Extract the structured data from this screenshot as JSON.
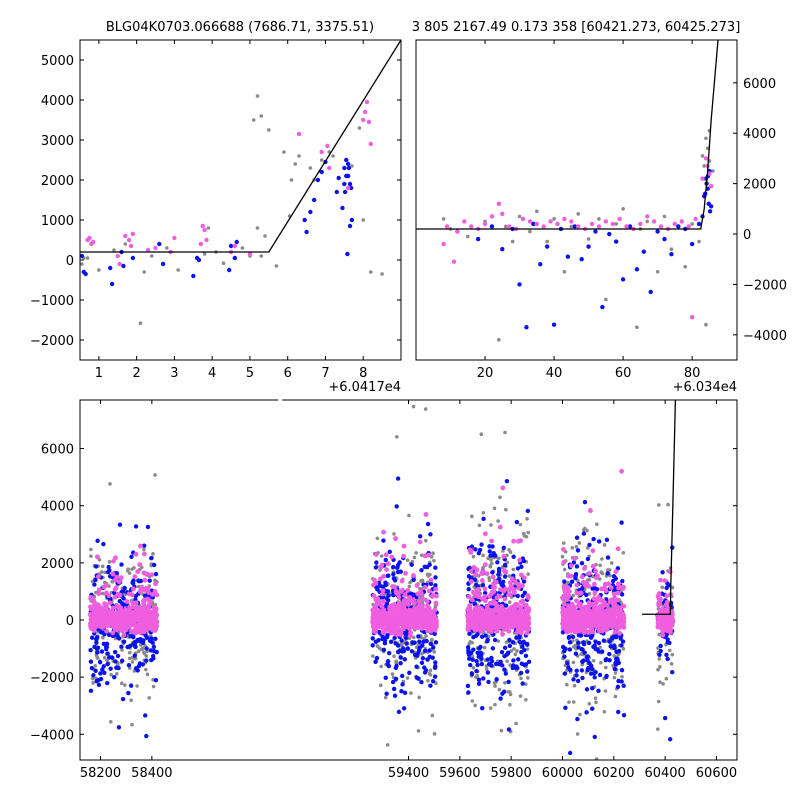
{
  "figure": {
    "title_left": "BLG04K0703.066688 (7686.71, 3375.51)",
    "title_right": "3 805 2167.49 0.173 358 [60421.273, 60425.273]"
  },
  "colors": {
    "blue": "#0a12f2",
    "gray": "#8a8a8a",
    "pink": "#f05ee0",
    "model": "#000000"
  },
  "chart_data": [
    {
      "type": "scatter",
      "panel": "top-left",
      "title": "BLG04K0703.066688 (7686.71, 3375.51)",
      "offset_label": "+6.0417e4",
      "xlim": [
        0.5,
        9.0
      ],
      "ylim": [
        -2500,
        5500
      ],
      "xticks": [
        1,
        2,
        3,
        4,
        5,
        6,
        7,
        8
      ],
      "yticks": [
        -2000,
        -1000,
        0,
        1000,
        2000,
        3000,
        4000,
        5000
      ],
      "yaxis_side": "left",
      "model_line": {
        "x": [
          0.5,
          5.5,
          9.0
        ],
        "y": [
          200,
          200,
          5500
        ]
      },
      "series": [
        {
          "color": "blue",
          "x": [
            0.55,
            0.6,
            0.65,
            1.3,
            1.35,
            1.6,
            1.65,
            1.9,
            2.6,
            2.7,
            3.5,
            3.6,
            3.65,
            4.45,
            4.5,
            4.6,
            4.65,
            6.5,
            6.6,
            6.8,
            6.9,
            7.0,
            7.3,
            7.35,
            7.5,
            7.55,
            7.6,
            7.65,
            7.7,
            7.55,
            7.62,
            7.68,
            7.52,
            7.58,
            7.65,
            7.5,
            7.45,
            7.6,
            6.45,
            6.7
          ],
          "y": [
            100,
            -300,
            -350,
            -200,
            -600,
            200,
            -150,
            50,
            400,
            -100,
            -400,
            50,
            0,
            -250,
            350,
            50,
            450,
            700,
            1200,
            2000,
            2200,
            2450,
            1700,
            2050,
            2300,
            2100,
            2400,
            1900,
            1000,
            2500,
            2300,
            1800,
            1700,
            150,
            850,
            1900,
            1300,
            2100,
            1000,
            1500
          ]
        },
        {
          "color": "gray",
          "x": [
            0.55,
            0.6,
            0.7,
            1.0,
            1.4,
            1.7,
            2.1,
            2.2,
            2.4,
            2.8,
            3.1,
            3.7,
            3.8,
            3.9,
            4.1,
            4.3,
            4.8,
            5.0,
            5.1,
            5.2,
            5.3,
            5.5,
            5.7,
            5.9,
            6.05,
            6.1,
            6.2,
            6.3,
            6.6,
            6.7,
            6.9,
            7.1,
            7.2,
            7.3,
            7.7,
            7.9,
            8.0,
            8.2,
            8.5,
            5.2,
            5.3,
            5.4
          ],
          "y": [
            -100,
            50,
            50,
            -250,
            250,
            400,
            -1580,
            -300,
            100,
            300,
            -250,
            400,
            150,
            800,
            200,
            -80,
            300,
            100,
            3500,
            4100,
            3600,
            3250,
            -150,
            2700,
            1100,
            2000,
            2400,
            2600,
            2300,
            2000,
            2500,
            2700,
            2600,
            1700,
            2350,
            3300,
            1000,
            -300,
            -350,
            800,
            100,
            600
          ]
        },
        {
          "color": "pink",
          "x": [
            0.7,
            0.75,
            0.8,
            0.85,
            1.5,
            1.55,
            1.7,
            1.8,
            1.85,
            1.9,
            2.3,
            2.5,
            2.9,
            3.0,
            3.7,
            3.75,
            3.8,
            3.85,
            4.5,
            4.6,
            5.0,
            6.3,
            6.9,
            7.05,
            7.1,
            8.0,
            8.05,
            8.1,
            8.15,
            8.2,
            7.6
          ],
          "y": [
            500,
            550,
            400,
            450,
            100,
            -100,
            600,
            500,
            350,
            650,
            250,
            300,
            200,
            550,
            400,
            850,
            750,
            500,
            200,
            350,
            150,
            3150,
            2700,
            2850,
            2300,
            3500,
            3700,
            3950,
            3450,
            2900,
            1800
          ]
        }
      ]
    },
    {
      "type": "scatter",
      "panel": "top-right",
      "title": "3 805 2167.49 0.173 358 [60421.273, 60425.273]",
      "offset_label": "+6.034e4",
      "xlim": [
        0,
        93
      ],
      "ylim": [
        -5000,
        7700
      ],
      "xticks": [
        20,
        40,
        60,
        80
      ],
      "yticks": [
        -4000,
        -2000,
        0,
        2000,
        4000,
        6000
      ],
      "yaxis_side": "right",
      "model_line": {
        "x": [
          0,
          82.5,
          83.5,
          84.5,
          85.5,
          87.5
        ],
        "y": [
          200,
          200,
          1000,
          2500,
          4500,
          7700
        ]
      },
      "series": [
        {
          "color": "blue",
          "x": [
            12,
            18,
            22,
            25,
            28,
            30,
            32,
            34,
            36,
            38,
            40,
            42,
            44,
            46,
            48,
            50,
            52,
            54,
            56,
            58,
            60,
            62,
            64,
            66,
            68,
            70,
            72,
            74,
            76,
            78,
            80,
            82,
            83,
            83.5,
            84,
            84.5,
            85,
            85.2,
            84.8,
            84.2,
            83.8,
            84.6,
            85.5
          ],
          "y": [
            100,
            -200,
            300,
            -600,
            200,
            -2000,
            -3700,
            400,
            -1200,
            -500,
            -3600,
            200,
            -900,
            300,
            -1000,
            -500,
            100,
            -2900,
            0,
            -300,
            -1800,
            300,
            -1400,
            -700,
            -2300,
            100,
            -200,
            -800,
            300,
            200,
            -400,
            400,
            700,
            1500,
            2200,
            1800,
            2500,
            900,
            1200,
            2000,
            1600,
            2300,
            1100
          ]
        },
        {
          "color": "gray",
          "x": [
            8,
            10,
            15,
            20,
            24,
            26,
            28,
            30,
            33,
            35,
            38,
            40,
            43,
            45,
            47,
            50,
            53,
            55,
            58,
            60,
            62,
            64,
            65,
            67,
            70,
            72,
            74,
            76,
            78,
            80,
            82,
            84,
            83,
            84,
            85,
            86,
            84.5,
            85,
            83.5
          ],
          "y": [
            600,
            200,
            -100,
            500,
            -4200,
            300,
            -300,
            700,
            100,
            900,
            -300,
            600,
            -1500,
            300,
            800,
            -200,
            600,
            -2600,
            400,
            1000,
            300,
            -3700,
            200,
            500,
            -1500,
            700,
            -600,
            300,
            -1300,
            400,
            -300,
            -3600,
            3100,
            3800,
            4100,
            2500,
            3400,
            2900,
            2700
          ]
        },
        {
          "color": "pink",
          "x": [
            8,
            9,
            11,
            12,
            14,
            16,
            18,
            20,
            22,
            24,
            25,
            27,
            29,
            31,
            33,
            35,
            37,
            39,
            41,
            43,
            45,
            47,
            49,
            51,
            53,
            55,
            57,
            59,
            61,
            63,
            65,
            67,
            69,
            71,
            73,
            75,
            77,
            79,
            81,
            83,
            84,
            84.5,
            85,
            85.5,
            80
          ],
          "y": [
            -400,
            300,
            -1100,
            100,
            500,
            300,
            200,
            400,
            700,
            1200,
            800,
            300,
            200,
            600,
            500,
            400,
            300,
            500,
            400,
            600,
            500,
            300,
            200,
            400,
            300,
            500,
            400,
            600,
            300,
            200,
            400,
            700,
            500,
            300,
            200,
            400,
            500,
            300,
            600,
            2200,
            3000,
            2700,
            2400,
            1900,
            -3300
          ]
        }
      ]
    },
    {
      "type": "scatter",
      "panel": "bottom",
      "xlim": [
        58120,
        60680
      ],
      "ylim": [
        -4900,
        7700
      ],
      "xticks": [
        58200,
        58400,
        59400,
        59600,
        59800,
        60000,
        60200,
        60400,
        60600
      ],
      "xtick_labels": [
        "58200",
        "58400",
        "59400",
        "59600",
        "59800",
        "60000",
        "60200",
        "60400",
        "60600"
      ],
      "yticks": [
        -4000,
        -2000,
        0,
        2000,
        4000,
        6000
      ],
      "yaxis_side": "left",
      "axis_break_after": 58400,
      "axis_break_before": 59400,
      "seasons": [
        {
          "x0": 58160,
          "x1": 58420,
          "spread": 1800
        },
        {
          "x0": 59260,
          "x1": 59510,
          "spread": 2200
        },
        {
          "x0": 59630,
          "x1": 59870,
          "spread": 2600
        },
        {
          "x0": 60000,
          "x1": 60240,
          "spread": 2400
        },
        {
          "x0": 60370,
          "x1": 60430,
          "spread": 1500
        }
      ],
      "model_line": {
        "x": [
          60310,
          60420,
          60422,
          60430,
          60440
        ],
        "y": [
          200,
          200,
          1200,
          4000,
          7700
        ]
      }
    }
  ]
}
